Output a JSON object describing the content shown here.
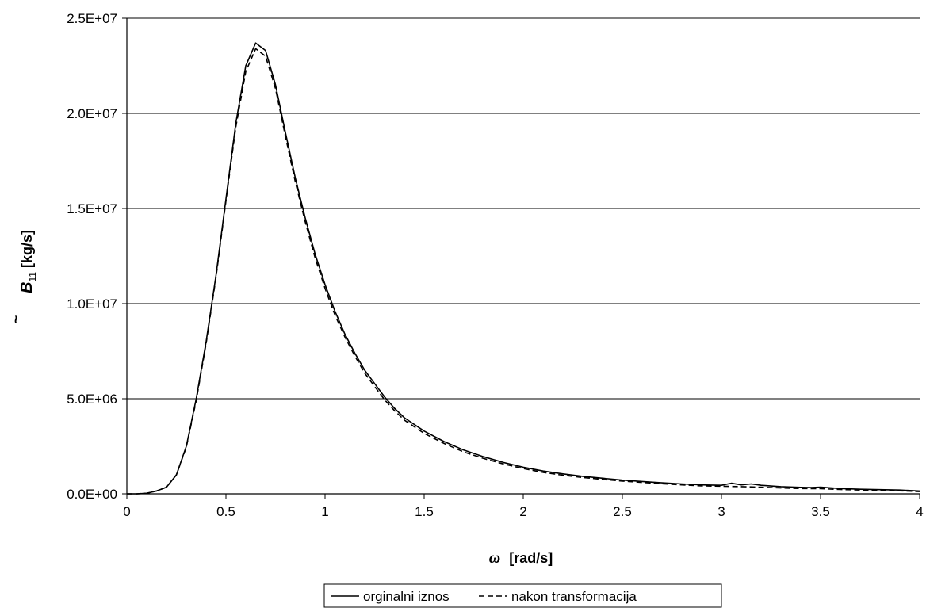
{
  "chart_data": {
    "type": "line",
    "xlabel_symbol": "ω",
    "xlabel_unit": "[rad/s]",
    "ylabel_symbol": "B",
    "ylabel_accent": "~",
    "ylabel_subscript": "11",
    "ylabel_unit": "[kg/s]",
    "xlim": [
      0,
      4
    ],
    "ylim": [
      0,
      25000000
    ],
    "x_ticks": [
      "0",
      "0.5",
      "1",
      "1.5",
      "2",
      "2.5",
      "3",
      "3.5",
      "4"
    ],
    "y_ticks": [
      "0.0E+00",
      "5.0E+06",
      "1.0E+07",
      "1.5E+07",
      "2.0E+07",
      "2.5E+07"
    ],
    "grid": "horizontal",
    "legend_position": "bottom-center",
    "series": [
      {
        "name": "orginalni iznos",
        "style": "solid",
        "color": "#000000",
        "x": [
          0,
          0.05,
          0.1,
          0.15,
          0.2,
          0.25,
          0.3,
          0.35,
          0.4,
          0.45,
          0.5,
          0.55,
          0.6,
          0.65,
          0.7,
          0.75,
          0.8,
          0.85,
          0.9,
          0.95,
          1.0,
          1.05,
          1.1,
          1.15,
          1.2,
          1.25,
          1.3,
          1.35,
          1.4,
          1.5,
          1.6,
          1.7,
          1.8,
          1.9,
          2.0,
          2.1,
          2.2,
          2.3,
          2.4,
          2.5,
          2.6,
          2.7,
          2.8,
          2.9,
          3.0,
          3.05,
          3.1,
          3.15,
          3.2,
          3.3,
          3.4,
          3.45,
          3.5,
          3.6,
          3.7,
          3.8,
          3.9,
          4.0
        ],
        "y": [
          0,
          0,
          30000,
          150000,
          350000,
          1000000,
          2500000,
          5000000,
          8000000,
          11500000,
          15500000,
          19500000,
          22500000,
          23700000,
          23300000,
          21500000,
          19000000,
          16600000,
          14500000,
          12600000,
          11000000,
          9600000,
          8400000,
          7400000,
          6500000,
          5800000,
          5100000,
          4500000,
          4000000,
          3300000,
          2750000,
          2300000,
          1950000,
          1650000,
          1400000,
          1200000,
          1050000,
          920000,
          820000,
          720000,
          650000,
          580000,
          520000,
          470000,
          450000,
          560000,
          470000,
          520000,
          450000,
          380000,
          340000,
          330000,
          350000,
          280000,
          240000,
          220000,
          200000,
          150000
        ]
      },
      {
        "name": "nakon transformacija",
        "style": "dashed",
        "color": "#000000",
        "x": [
          0,
          0.05,
          0.1,
          0.15,
          0.2,
          0.25,
          0.3,
          0.35,
          0.4,
          0.45,
          0.5,
          0.55,
          0.6,
          0.65,
          0.7,
          0.75,
          0.8,
          0.85,
          0.9,
          0.95,
          1.0,
          1.05,
          1.1,
          1.15,
          1.2,
          1.25,
          1.3,
          1.35,
          1.4,
          1.5,
          1.6,
          1.7,
          1.8,
          1.9,
          2.0,
          2.1,
          2.2,
          2.3,
          2.4,
          2.5,
          2.6,
          2.7,
          2.8,
          2.9,
          3.0,
          3.1,
          3.2,
          3.3,
          3.4,
          3.5,
          3.6,
          3.7,
          3.8,
          3.9,
          4.0
        ],
        "y": [
          0,
          0,
          30000,
          150000,
          350000,
          1000000,
          2450000,
          4900000,
          7900000,
          11400000,
          15400000,
          19300000,
          22200000,
          23400000,
          23000000,
          21300000,
          18800000,
          16400000,
          14300000,
          12400000,
          10800000,
          9400000,
          8250000,
          7250000,
          6350000,
          5650000,
          4950000,
          4380000,
          3880000,
          3180000,
          2650000,
          2200000,
          1860000,
          1570000,
          1330000,
          1130000,
          980000,
          860000,
          760000,
          670000,
          600000,
          530000,
          470000,
          420000,
          400000,
          380000,
          350000,
          310000,
          280000,
          270000,
          230000,
          200000,
          180000,
          160000,
          120000
        ]
      }
    ]
  }
}
